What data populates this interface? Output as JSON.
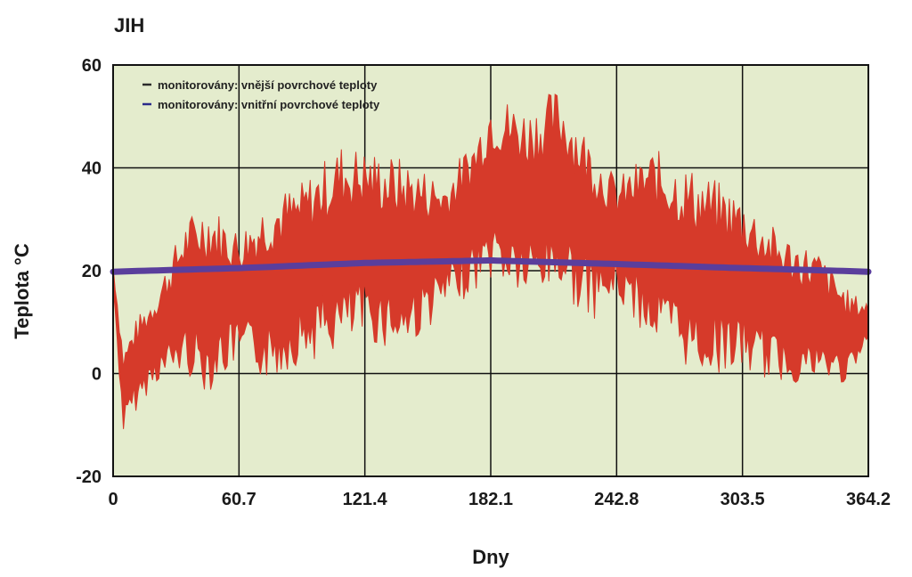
{
  "chart_data": {
    "type": "area",
    "title": "JIH",
    "xlabel": "Dny",
    "ylabel": "Teplota °C",
    "xlim": [
      0,
      364.2
    ],
    "ylim": [
      -20,
      60
    ],
    "xticks": [
      "0",
      "60.7",
      "121.4",
      "182.1",
      "242.8",
      "303.5",
      "364.2"
    ],
    "yticks": [
      "60",
      "40",
      "20",
      "0",
      "-20"
    ],
    "grid": true,
    "legend_position": "top-left",
    "background_color": "#e4eccd",
    "series": [
      {
        "name": "monitorovány: vnější povrchové teploty",
        "color": "#d63a2a",
        "legend_color": "#2b2b2b",
        "x": [
          0,
          5,
          10,
          20,
          35,
          45,
          60.7,
          75,
          90,
          110,
          121.4,
          140,
          160,
          175,
          182.1,
          200,
          215,
          230,
          242.8,
          260,
          280,
          303.5,
          320,
          340,
          355,
          364.2
        ],
        "max": [
          22,
          5,
          10,
          16,
          30,
          34,
          28,
          35,
          37,
          45,
          44,
          42,
          38,
          47,
          55,
          52,
          56,
          46,
          38,
          44,
          40,
          35,
          28,
          24,
          16,
          14
        ],
        "min": [
          16,
          -12,
          -8,
          -2,
          0,
          -4,
          2,
          -2,
          2,
          4,
          6,
          4,
          12,
          16,
          18,
          14,
          16,
          10,
          14,
          6,
          0,
          0,
          -2,
          -2,
          -2,
          6
        ]
      },
      {
        "name": "monitorovány: vnitřní povrchové teploty",
        "color": "#5a3e9c",
        "legend_color": "#2a2a8a",
        "x": [
          0,
          60.7,
          121.4,
          182.1,
          242.8,
          303.5,
          364.2
        ],
        "values": [
          19.8,
          20.5,
          21.5,
          22.0,
          21.3,
          20.5,
          19.8
        ]
      }
    ]
  }
}
